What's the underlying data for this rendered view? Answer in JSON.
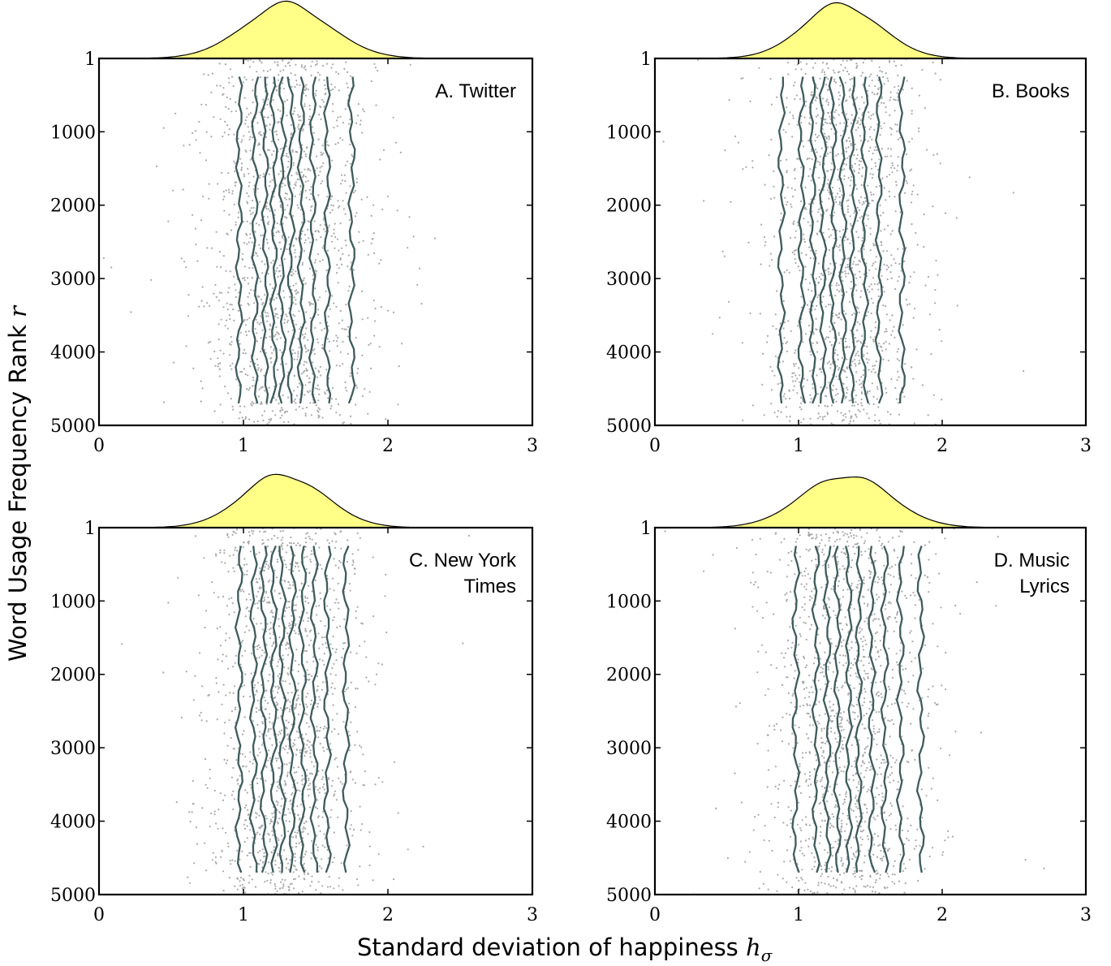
{
  "chart_data": {
    "type": "scatter",
    "xlabel": "Standard deviation of happiness",
    "xlabel_symbol": "h",
    "xlabel_subscript": "σ",
    "ylabel": "Word Usage Frequency Rank",
    "ylabel_symbol": "r",
    "xlim": [
      0,
      3
    ],
    "ylim": [
      1,
      5000
    ],
    "y_inverted": true,
    "x_ticks": [
      "0",
      "1",
      "2",
      "3"
    ],
    "y_ticks": [
      "1",
      "1000",
      "2000",
      "3000",
      "4000",
      "5000"
    ],
    "grid": false,
    "colors": {
      "points": "#a8a8a8",
      "contours": "#3f5b5b",
      "density_fill": "#ffff88",
      "density_stroke": "#000000"
    },
    "panels": [
      {
        "label_lines": [
          "A. Twitter"
        ],
        "density": {
          "mean": 1.3,
          "sd": 0.3
        },
        "contour_x": [
          0.97,
          1.08,
          1.15,
          1.21,
          1.27,
          1.33,
          1.4,
          1.48,
          1.58,
          1.75
        ]
      },
      {
        "label_lines": [
          "B. Books"
        ],
        "density": {
          "mean": 1.3,
          "sd": 0.27
        },
        "contour_x": [
          0.88,
          1.02,
          1.1,
          1.17,
          1.24,
          1.31,
          1.38,
          1.46,
          1.56,
          1.72
        ]
      },
      {
        "label_lines": [
          "C. New York",
          "Times"
        ],
        "density": {
          "mean": 1.28,
          "sd": 0.28
        },
        "contour_x": [
          0.97,
          1.07,
          1.14,
          1.21,
          1.27,
          1.34,
          1.41,
          1.49,
          1.58,
          1.71
        ]
      },
      {
        "label_lines": [
          "D. Music",
          "Lyrics"
        ],
        "density": {
          "mean": 1.33,
          "sd": 0.3
        },
        "contour_x": [
          0.98,
          1.12,
          1.2,
          1.27,
          1.35,
          1.42,
          1.51,
          1.6,
          1.71,
          1.85
        ]
      }
    ]
  }
}
